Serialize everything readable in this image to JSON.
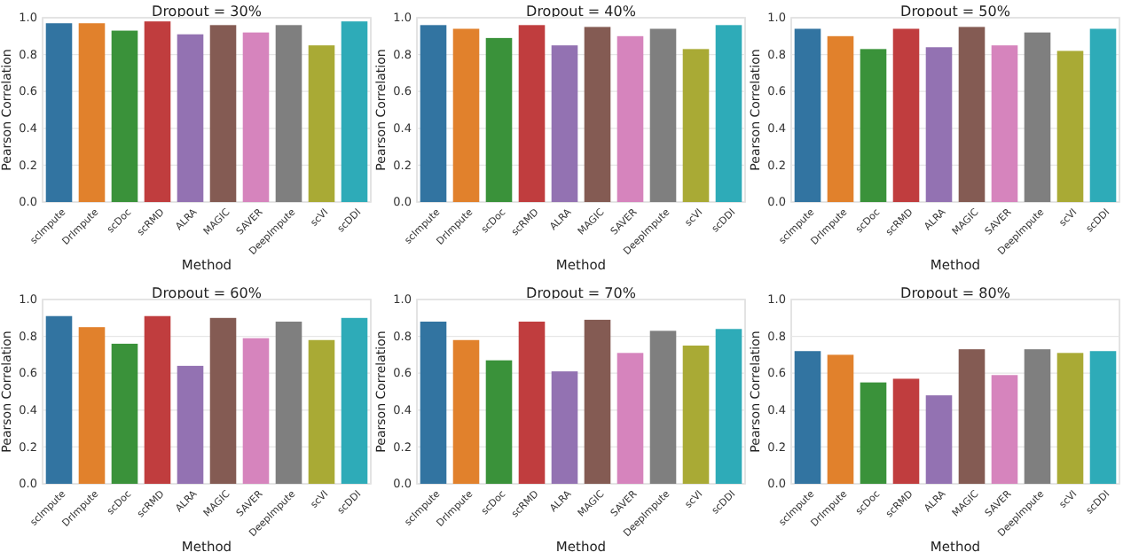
{
  "chart_data": [
    {
      "type": "bar",
      "title": "Dropout = 30%",
      "xlabel": "Method",
      "ylabel": "Pearson Correlation",
      "categories": [
        "scImpute",
        "DrImpute",
        "scDoc",
        "scRMD",
        "ALRA",
        "MAGIC",
        "SAVER",
        "DeepImpute",
        "scVI",
        "scDDI"
      ],
      "values": [
        0.97,
        0.97,
        0.93,
        0.98,
        0.91,
        0.96,
        0.92,
        0.96,
        0.85,
        0.98
      ],
      "colors": [
        "#3274a1",
        "#e1812c",
        "#3a923a",
        "#c03d3e",
        "#9372b2",
        "#845b53",
        "#d684bd",
        "#7f7f7f",
        "#a9aa35",
        "#2eabb8"
      ],
      "ylim": [
        0,
        1
      ],
      "yticks": [
        {
          "value": 0,
          "label": "0.0"
        },
        {
          "value": 0.2,
          "label": "0.2"
        },
        {
          "value": 0.4,
          "label": "0.4"
        },
        {
          "value": 0.6,
          "label": "0.6"
        },
        {
          "value": 0.8,
          "label": "0.8"
        },
        {
          "value": 1,
          "label": "1.0"
        }
      ],
      "grid": "y"
    },
    {
      "type": "bar",
      "title": "Dropout = 40%",
      "xlabel": "Method",
      "ylabel": "Pearson Correlation",
      "categories": [
        "scImpute",
        "DrImpute",
        "scDoc",
        "scRMD",
        "ALRA",
        "MAGIC",
        "SAVER",
        "DeepImpute",
        "scVI",
        "scDDI"
      ],
      "values": [
        0.96,
        0.94,
        0.89,
        0.96,
        0.85,
        0.95,
        0.9,
        0.94,
        0.83,
        0.96
      ],
      "colors": [
        "#3274a1",
        "#e1812c",
        "#3a923a",
        "#c03d3e",
        "#9372b2",
        "#845b53",
        "#d684bd",
        "#7f7f7f",
        "#a9aa35",
        "#2eabb8"
      ],
      "ylim": [
        0,
        1
      ],
      "yticks": [
        {
          "value": 0,
          "label": "0.0"
        },
        {
          "value": 0.2,
          "label": "0.2"
        },
        {
          "value": 0.4,
          "label": "0.4"
        },
        {
          "value": 0.6,
          "label": "0.6"
        },
        {
          "value": 0.8,
          "label": "0.8"
        },
        {
          "value": 1,
          "label": "1.0"
        }
      ],
      "grid": "y"
    },
    {
      "type": "bar",
      "title": "Dropout = 50%",
      "xlabel": "Method",
      "ylabel": "Pearson Correlation",
      "categories": [
        "scImpute",
        "DrImpute",
        "scDoc",
        "scRMD",
        "ALRA",
        "MAGIC",
        "SAVER",
        "DeepImpute",
        "scVI",
        "scDDI"
      ],
      "values": [
        0.94,
        0.9,
        0.83,
        0.94,
        0.84,
        0.95,
        0.85,
        0.92,
        0.82,
        0.94
      ],
      "colors": [
        "#3274a1",
        "#e1812c",
        "#3a923a",
        "#c03d3e",
        "#9372b2",
        "#845b53",
        "#d684bd",
        "#7f7f7f",
        "#a9aa35",
        "#2eabb8"
      ],
      "ylim": [
        0,
        1
      ],
      "yticks": [
        {
          "value": 0,
          "label": "0.0"
        },
        {
          "value": 0.2,
          "label": "0.2"
        },
        {
          "value": 0.4,
          "label": "0.4"
        },
        {
          "value": 0.6,
          "label": "0.6"
        },
        {
          "value": 0.8,
          "label": "0.8"
        },
        {
          "value": 1,
          "label": "1.0"
        }
      ],
      "grid": "y"
    },
    {
      "type": "bar",
      "title": "Dropout = 60%",
      "xlabel": "Method",
      "ylabel": "Pearson Correlation",
      "categories": [
        "scImpute",
        "DrImpute",
        "scDoc",
        "scRMD",
        "ALRA",
        "MAGIC",
        "SAVER",
        "DeepImpute",
        "scVI",
        "scDDI"
      ],
      "values": [
        0.91,
        0.85,
        0.76,
        0.91,
        0.64,
        0.9,
        0.79,
        0.88,
        0.78,
        0.9
      ],
      "colors": [
        "#3274a1",
        "#e1812c",
        "#3a923a",
        "#c03d3e",
        "#9372b2",
        "#845b53",
        "#d684bd",
        "#7f7f7f",
        "#a9aa35",
        "#2eabb8"
      ],
      "ylim": [
        0,
        1
      ],
      "yticks": [
        {
          "value": 0,
          "label": "0.0"
        },
        {
          "value": 0.2,
          "label": "0.2"
        },
        {
          "value": 0.4,
          "label": "0.4"
        },
        {
          "value": 0.6,
          "label": "0.6"
        },
        {
          "value": 0.8,
          "label": "0.8"
        },
        {
          "value": 1,
          "label": "1.0"
        }
      ],
      "grid": "y"
    },
    {
      "type": "bar",
      "title": "Dropout = 70%",
      "xlabel": "Method",
      "ylabel": "Pearson Correlation",
      "categories": [
        "scImpute",
        "DrImpute",
        "scDoc",
        "scRMD",
        "ALRA",
        "MAGIC",
        "SAVER",
        "DeepImpute",
        "scVI",
        "scDDI"
      ],
      "values": [
        0.88,
        0.78,
        0.67,
        0.88,
        0.61,
        0.89,
        0.71,
        0.83,
        0.75,
        0.84
      ],
      "colors": [
        "#3274a1",
        "#e1812c",
        "#3a923a",
        "#c03d3e",
        "#9372b2",
        "#845b53",
        "#d684bd",
        "#7f7f7f",
        "#a9aa35",
        "#2eabb8"
      ],
      "ylim": [
        0,
        1
      ],
      "yticks": [
        {
          "value": 0,
          "label": "0.0"
        },
        {
          "value": 0.2,
          "label": "0.2"
        },
        {
          "value": 0.4,
          "label": "0.4"
        },
        {
          "value": 0.6,
          "label": "0.6"
        },
        {
          "value": 0.8,
          "label": "0.8"
        },
        {
          "value": 1,
          "label": "1.0"
        }
      ],
      "grid": "y"
    },
    {
      "type": "bar",
      "title": "Dropout = 80%",
      "xlabel": "Method",
      "ylabel": "Pearson Correlation",
      "categories": [
        "scImpute",
        "DrImpute",
        "scDoc",
        "scRMD",
        "ALRA",
        "MAGIC",
        "SAVER",
        "DeepImpute",
        "scVI",
        "scDDI"
      ],
      "values": [
        0.72,
        0.7,
        0.55,
        0.57,
        0.48,
        0.73,
        0.59,
        0.73,
        0.71,
        0.72
      ],
      "colors": [
        "#3274a1",
        "#e1812c",
        "#3a923a",
        "#c03d3e",
        "#9372b2",
        "#845b53",
        "#d684bd",
        "#7f7f7f",
        "#a9aa35",
        "#2eabb8"
      ],
      "ylim": [
        0,
        1
      ],
      "yticks": [
        {
          "value": 0,
          "label": "0.0"
        },
        {
          "value": 0.2,
          "label": "0.2"
        },
        {
          "value": 0.4,
          "label": "0.4"
        },
        {
          "value": 0.6,
          "label": "0.6"
        },
        {
          "value": 0.8,
          "label": "0.8"
        },
        {
          "value": 1,
          "label": "1.0"
        }
      ],
      "grid": "y"
    }
  ]
}
